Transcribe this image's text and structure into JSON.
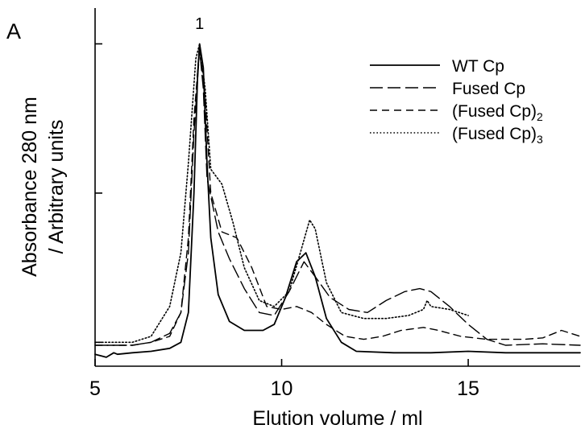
{
  "chart_data": {
    "type": "line",
    "panel_label": "A",
    "xlabel": "Elution volume / ml",
    "ylabel_line1": "Absorbance 280 nm",
    "ylabel_line2": "/ Arbitrary units",
    "xlim": [
      5,
      18
    ],
    "ylim": [
      -0.08,
      1.12
    ],
    "x_ticks": [
      5,
      10,
      15
    ],
    "y_tick_values": [
      0,
      0.5,
      1.0
    ],
    "y_tick_labels": false,
    "grid": false,
    "legend_position": "top-right",
    "annotations": [
      {
        "text": "1",
        "x": 7.8,
        "y": 1.05
      }
    ],
    "series": [
      {
        "name": "WT Cp",
        "dash": "solid",
        "points": [
          [
            5.0,
            -0.04
          ],
          [
            5.3,
            -0.05
          ],
          [
            5.5,
            -0.035
          ],
          [
            5.6,
            -0.04
          ],
          [
            6.0,
            -0.035
          ],
          [
            6.5,
            -0.03
          ],
          [
            7.0,
            -0.02
          ],
          [
            7.3,
            0.0
          ],
          [
            7.5,
            0.1
          ],
          [
            7.65,
            0.5
          ],
          [
            7.75,
            0.9
          ],
          [
            7.8,
            1.0
          ],
          [
            7.9,
            0.92
          ],
          [
            8.0,
            0.6
          ],
          [
            8.1,
            0.35
          ],
          [
            8.3,
            0.16
          ],
          [
            8.6,
            0.07
          ],
          [
            9.0,
            0.04
          ],
          [
            9.5,
            0.04
          ],
          [
            9.8,
            0.06
          ],
          [
            10.1,
            0.15
          ],
          [
            10.4,
            0.27
          ],
          [
            10.65,
            0.3
          ],
          [
            10.9,
            0.22
          ],
          [
            11.2,
            0.08
          ],
          [
            11.6,
            0.0
          ],
          [
            12.0,
            -0.03
          ],
          [
            13.0,
            -0.035
          ],
          [
            14.0,
            -0.035
          ],
          [
            15.0,
            -0.03
          ],
          [
            16.0,
            -0.035
          ],
          [
            17.0,
            -0.035
          ],
          [
            18.0,
            -0.035
          ]
        ]
      },
      {
        "name": "Fused Cp",
        "dash": "long-dash",
        "points": [
          [
            5.0,
            -0.01
          ],
          [
            6.0,
            -0.01
          ],
          [
            6.5,
            0.0
          ],
          [
            7.0,
            0.03
          ],
          [
            7.3,
            0.1
          ],
          [
            7.5,
            0.3
          ],
          [
            7.65,
            0.7
          ],
          [
            7.8,
            0.98
          ],
          [
            7.9,
            0.85
          ],
          [
            8.0,
            0.55
          ],
          [
            8.3,
            0.37
          ],
          [
            8.6,
            0.28
          ],
          [
            9.0,
            0.18
          ],
          [
            9.4,
            0.1
          ],
          [
            9.8,
            0.09
          ],
          [
            10.2,
            0.17
          ],
          [
            10.6,
            0.27
          ],
          [
            10.9,
            0.22
          ],
          [
            11.3,
            0.15
          ],
          [
            11.8,
            0.11
          ],
          [
            12.3,
            0.1
          ],
          [
            12.8,
            0.14
          ],
          [
            13.3,
            0.17
          ],
          [
            13.7,
            0.18
          ],
          [
            14.0,
            0.17
          ],
          [
            14.5,
            0.12
          ],
          [
            15.0,
            0.06
          ],
          [
            15.5,
            0.01
          ],
          [
            16.0,
            -0.01
          ],
          [
            17.0,
            -0.005
          ],
          [
            18.0,
            -0.01
          ]
        ]
      },
      {
        "name": "(Fused Cp)",
        "subscript": "2",
        "dash": "medium-dash",
        "points": [
          [
            5.0,
            -0.01
          ],
          [
            6.0,
            -0.01
          ],
          [
            6.5,
            0.0
          ],
          [
            7.0,
            0.02
          ],
          [
            7.3,
            0.1
          ],
          [
            7.5,
            0.35
          ],
          [
            7.65,
            0.75
          ],
          [
            7.8,
            0.99
          ],
          [
            7.95,
            0.82
          ],
          [
            8.1,
            0.5
          ],
          [
            8.4,
            0.37
          ],
          [
            8.8,
            0.35
          ],
          [
            9.2,
            0.25
          ],
          [
            9.6,
            0.12
          ],
          [
            10.0,
            0.11
          ],
          [
            10.4,
            0.12
          ],
          [
            10.8,
            0.1
          ],
          [
            11.2,
            0.06
          ],
          [
            11.7,
            0.02
          ],
          [
            12.2,
            0.01
          ],
          [
            12.7,
            0.02
          ],
          [
            13.2,
            0.04
          ],
          [
            13.8,
            0.05
          ],
          [
            14.2,
            0.04
          ],
          [
            14.8,
            0.02
          ],
          [
            15.5,
            0.01
          ],
          [
            16.5,
            0.01
          ],
          [
            17.0,
            0.015
          ],
          [
            17.5,
            0.04
          ],
          [
            18.0,
            0.02
          ]
        ]
      },
      {
        "name": "(Fused Cp)",
        "subscript": "3",
        "dash": "dotted",
        "points": [
          [
            5.0,
            0.0
          ],
          [
            6.0,
            0.0
          ],
          [
            6.5,
            0.02
          ],
          [
            7.0,
            0.12
          ],
          [
            7.3,
            0.3
          ],
          [
            7.5,
            0.6
          ],
          [
            7.7,
            0.95
          ],
          [
            7.8,
            1.0
          ],
          [
            7.95,
            0.85
          ],
          [
            8.1,
            0.58
          ],
          [
            8.4,
            0.53
          ],
          [
            8.7,
            0.4
          ],
          [
            9.0,
            0.25
          ],
          [
            9.4,
            0.14
          ],
          [
            9.8,
            0.12
          ],
          [
            10.2,
            0.17
          ],
          [
            10.5,
            0.3
          ],
          [
            10.75,
            0.41
          ],
          [
            10.9,
            0.38
          ],
          [
            11.2,
            0.2
          ],
          [
            11.6,
            0.1
          ],
          [
            12.2,
            0.08
          ],
          [
            12.8,
            0.08
          ],
          [
            13.4,
            0.09
          ],
          [
            13.8,
            0.11
          ],
          [
            13.9,
            0.14
          ],
          [
            14.0,
            0.12
          ],
          [
            14.5,
            0.11
          ],
          [
            15.0,
            0.09
          ]
        ]
      }
    ]
  }
}
